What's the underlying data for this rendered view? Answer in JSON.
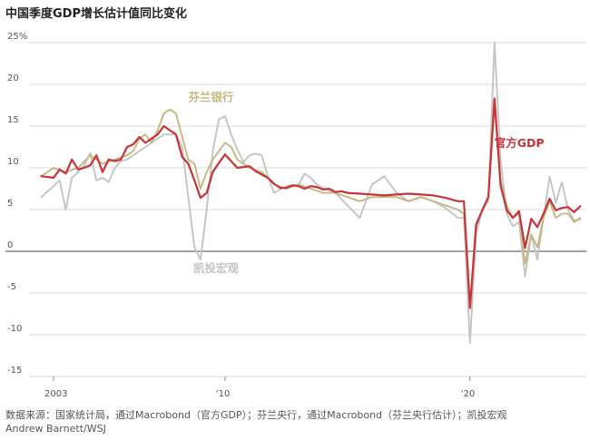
{
  "title": "中国季度GDP增长估计值同比变化",
  "source_line1": "数据来源：国家统计局，通过Macrobond（官方GDP）；芬兰央行，通过Macrobond（芬兰央行估计）；凯投宏观",
  "source_line2": "Andrew Barnett/WSJ",
  "colors": {
    "official": "#c8333a",
    "bofit": "#c2b97f",
    "capital": "#c4c4c4",
    "zero": "#444444",
    "grid": "#d9d9d9"
  },
  "chart_data": {
    "type": "line",
    "title": "中国季度GDP增长估计值同比变化",
    "xlabel": "",
    "ylabel": "",
    "xlim": [
      2002.0,
      2024.75
    ],
    "ylim": [
      -15,
      25
    ],
    "x_ticks": [
      {
        "value": 2003,
        "label": "2003"
      },
      {
        "value": 2010,
        "label": "'10"
      },
      {
        "value": 2020,
        "label": "'20"
      }
    ],
    "y_ticks": [
      {
        "value": 25,
        "label": "25%"
      },
      {
        "value": 20,
        "label": "20"
      },
      {
        "value": 15,
        "label": "15"
      },
      {
        "value": 10,
        "label": "10"
      },
      {
        "value": 5,
        "label": "5"
      },
      {
        "value": 0,
        "label": "0"
      },
      {
        "value": -5,
        "label": "-5"
      },
      {
        "value": -10,
        "label": "-10"
      },
      {
        "value": -15,
        "label": "-15"
      }
    ],
    "grid": true,
    "series": [
      {
        "name": "凯投宏观",
        "key": "capital",
        "x": [
          2002.5,
          2003.0,
          2003.25,
          2003.5,
          2003.75,
          2004.0,
          2004.25,
          2004.5,
          2004.75,
          2005.0,
          2005.25,
          2005.5,
          2005.75,
          2006.0,
          2006.5,
          2007.0,
          2007.5,
          2008.0,
          2008.25,
          2008.5,
          2008.75,
          2009.0,
          2009.25,
          2009.5,
          2009.75,
          2010.0,
          2010.25,
          2010.5,
          2010.75,
          2011.0,
          2011.25,
          2011.5,
          2011.75,
          2012.0,
          2012.5,
          2013.0,
          2013.25,
          2013.5,
          2013.75,
          2014.0,
          2014.5,
          2015.0,
          2015.5,
          2016.0,
          2016.5,
          2016.75,
          2017.0,
          2017.5,
          2018.0,
          2018.5,
          2019.0,
          2019.5,
          2019.75,
          2020.0,
          2020.25,
          2020.5,
          2020.75,
          2021.0,
          2021.25,
          2021.5,
          2021.75,
          2022.0,
          2022.25,
          2022.5,
          2022.75,
          2023.0,
          2023.25,
          2023.5,
          2023.75,
          2024.0,
          2024.25,
          2024.5
        ],
        "y": [
          6.5,
          7.8,
          8.5,
          5.0,
          8.8,
          9.5,
          10.3,
          11.8,
          8.5,
          8.8,
          8.3,
          10.0,
          10.8,
          11.0,
          12.0,
          13.0,
          14.0,
          14.0,
          12.5,
          6.5,
          0.5,
          -1.0,
          5.0,
          12.0,
          15.8,
          16.2,
          14.0,
          12.2,
          10.7,
          11.5,
          11.7,
          11.5,
          9.0,
          7.0,
          7.8,
          8.0,
          9.3,
          8.8,
          8.0,
          7.6,
          7.0,
          5.5,
          4.0,
          8.0,
          9.0,
          8.0,
          7.0,
          6.0,
          6.5,
          6.0,
          5.2,
          4.0,
          4.0,
          -11.0,
          2.0,
          5.0,
          6.0,
          25.0,
          11.0,
          4.5,
          3.0,
          3.5,
          -3.0,
          2.0,
          -1.0,
          4.0,
          9.0,
          5.8,
          8.3,
          5.0,
          3.7,
          3.8
        ]
      },
      {
        "name": "芬兰银行",
        "key": "bofit",
        "x": [
          2002.5,
          2003.0,
          2003.5,
          2004.0,
          2004.5,
          2005.0,
          2005.5,
          2006.0,
          2006.25,
          2006.5,
          2006.75,
          2007.0,
          2007.25,
          2007.5,
          2007.75,
          2008.0,
          2008.5,
          2008.75,
          2009.0,
          2009.25,
          2009.5,
          2009.75,
          2010.0,
          2010.25,
          2010.5,
          2011.0,
          2011.5,
          2012.0,
          2012.5,
          2013.0,
          2013.5,
          2014.0,
          2014.5,
          2015.0,
          2015.5,
          2016.0,
          2016.5,
          2017.0,
          2017.5,
          2018.0,
          2018.5,
          2019.0,
          2019.5,
          2019.75,
          2020.0,
          2020.25,
          2020.5,
          2020.75,
          2021.0,
          2021.25,
          2021.5,
          2021.75,
          2022.0,
          2022.25,
          2022.5,
          2022.75,
          2023.0,
          2023.25,
          2023.5,
          2023.75,
          2024.0,
          2024.25,
          2024.5
        ],
        "y": [
          9.0,
          10.0,
          9.5,
          10.0,
          11.5,
          10.5,
          11.0,
          11.5,
          12.0,
          13.5,
          14.0,
          13.0,
          14.5,
          16.5,
          17.0,
          16.5,
          11.0,
          10.5,
          7.5,
          9.5,
          11.0,
          12.0,
          13.0,
          12.5,
          11.0,
          10.0,
          9.5,
          8.0,
          7.5,
          8.0,
          7.5,
          7.0,
          7.0,
          6.5,
          6.0,
          6.5,
          6.5,
          6.5,
          6.0,
          6.5,
          6.0,
          5.5,
          5.0,
          4.5,
          -6.5,
          3.0,
          5.0,
          6.5,
          17.5,
          8.5,
          5.5,
          4.0,
          4.5,
          -1.5,
          2.0,
          0.5,
          4.0,
          6.0,
          4.0,
          4.5,
          4.5,
          3.5,
          4.0
        ]
      },
      {
        "name": "官方GDP",
        "key": "official",
        "x": [
          2002.5,
          2003.0,
          2003.25,
          2003.5,
          2003.75,
          2004.0,
          2004.25,
          2004.5,
          2004.75,
          2005.0,
          2005.25,
          2005.5,
          2005.75,
          2006.0,
          2006.25,
          2006.5,
          2006.75,
          2007.0,
          2007.25,
          2007.5,
          2007.75,
          2008.0,
          2008.25,
          2008.5,
          2008.75,
          2009.0,
          2009.25,
          2009.5,
          2009.75,
          2010.0,
          2010.25,
          2010.5,
          2010.75,
          2011.0,
          2011.25,
          2011.5,
          2011.75,
          2012.0,
          2012.25,
          2012.5,
          2012.75,
          2013.0,
          2013.25,
          2013.5,
          2013.75,
          2014.0,
          2014.25,
          2014.5,
          2014.75,
          2015.0,
          2015.5,
          2016.0,
          2016.5,
          2017.0,
          2017.5,
          2018.0,
          2018.5,
          2019.0,
          2019.5,
          2019.75,
          2020.0,
          2020.25,
          2020.5,
          2020.75,
          2021.0,
          2021.25,
          2021.5,
          2021.75,
          2022.0,
          2022.25,
          2022.5,
          2022.75,
          2023.0,
          2023.25,
          2023.5,
          2023.75,
          2024.0,
          2024.25,
          2024.5
        ],
        "y": [
          9.0,
          8.8,
          9.8,
          9.3,
          11.0,
          9.8,
          10.0,
          10.3,
          11.5,
          9.5,
          11.0,
          10.8,
          11.0,
          12.5,
          12.8,
          13.7,
          13.0,
          13.5,
          14.0,
          15.0,
          14.5,
          14.0,
          11.3,
          10.5,
          8.5,
          6.4,
          7.0,
          9.5,
          10.6,
          11.6,
          10.8,
          10.0,
          10.1,
          10.2,
          9.6,
          9.2,
          8.8,
          8.1,
          7.6,
          7.6,
          7.9,
          7.8,
          7.5,
          7.8,
          7.7,
          7.4,
          7.5,
          7.1,
          7.2,
          7.0,
          6.9,
          6.8,
          6.7,
          6.8,
          6.9,
          6.8,
          6.7,
          6.4,
          6.0,
          6.0,
          -6.8,
          3.2,
          4.9,
          6.5,
          18.3,
          7.9,
          4.9,
          4.0,
          4.8,
          0.4,
          3.9,
          2.9,
          4.5,
          6.3,
          4.9,
          5.2,
          5.3,
          4.7,
          5.4
        ]
      }
    ],
    "annotations": [
      {
        "series": "bofit",
        "text": "芬兰银行",
        "x": 2008.5,
        "y": 18.0
      },
      {
        "series": "official",
        "text": "官方GDP",
        "x": 2021.0,
        "y": 12.5
      },
      {
        "series": "capital",
        "text": "凯投宏观",
        "x": 2008.7,
        "y": -2.5
      }
    ]
  }
}
